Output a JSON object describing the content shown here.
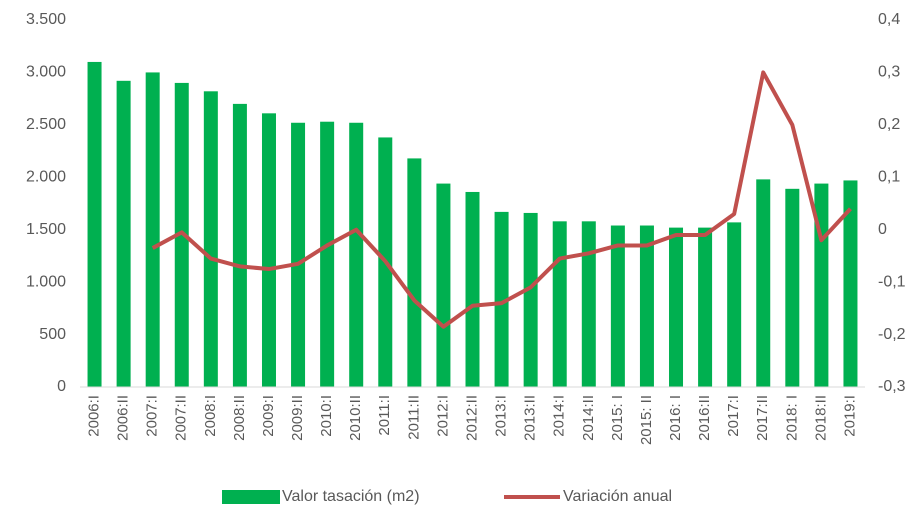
{
  "chart_data": {
    "type": "bar",
    "categories": [
      "2006:I",
      "2006:II",
      "2007:I",
      "2007:II",
      "2008:I",
      "2008:II",
      "2009:I",
      "2009:II",
      "2010:I",
      "2010:II",
      "2011:I",
      "2011:II",
      "2012:I",
      "2012:II",
      "2013:I",
      "2013:II",
      "2014:I",
      "2014:II",
      "2015: I",
      "2015: II",
      "2016: I",
      "2016:II",
      "2017:I",
      "2017:II",
      "2018: I",
      "2018:II",
      "2019:I"
    ],
    "series": [
      {
        "name": "Valor tasación (m2)",
        "color": "#00b050",
        "type": "bar",
        "values": [
          3100,
          2920,
          3000,
          2900,
          2820,
          2700,
          2610,
          2520,
          2530,
          2520,
          2380,
          2180,
          1940,
          1860,
          1670,
          1660,
          1580,
          1580,
          1540,
          1540,
          1520,
          1520,
          1570,
          1980,
          1890,
          1940,
          1970
        ]
      },
      {
        "name": "Variación anual",
        "color": "#c0504d",
        "type": "line",
        "axis": "y2",
        "values": [
          null,
          null,
          -0.035,
          -0.005,
          -0.055,
          -0.07,
          -0.075,
          -0.065,
          -0.03,
          0.0,
          -0.06,
          -0.135,
          -0.185,
          -0.145,
          -0.14,
          -0.11,
          -0.055,
          -0.045,
          -0.03,
          -0.03,
          -0.01,
          -0.01,
          0.03,
          0.3,
          0.2,
          -0.02,
          0.04
        ]
      }
    ],
    "ylim": [
      0,
      3500
    ],
    "yticks": [
      0,
      500,
      {
        "value": 1000,
        "label": "1.000"
      },
      {
        "value": 1500,
        "label": "1.500"
      },
      {
        "value": 2000,
        "label": "2.000"
      },
      {
        "value": 2500,
        "label": "2.500"
      },
      {
        "value": 3000,
        "label": "3.000"
      },
      {
        "value": 3500,
        "label": "3.500"
      }
    ],
    "y2lim": [
      -0.3,
      0.4
    ],
    "y2ticks": [
      {
        "value": -0.3,
        "label": "-0,3"
      },
      {
        "value": -0.2,
        "label": "-0,2"
      },
      {
        "value": -0.1,
        "label": "-0,1"
      },
      0,
      {
        "value": 0.1,
        "label": "0,1"
      },
      {
        "value": 0.2,
        "label": "0,2"
      },
      {
        "value": 0.3,
        "label": "0,3"
      },
      {
        "value": 0.4,
        "label": "0,4"
      }
    ],
    "grid": false,
    "legend": "bottom"
  }
}
